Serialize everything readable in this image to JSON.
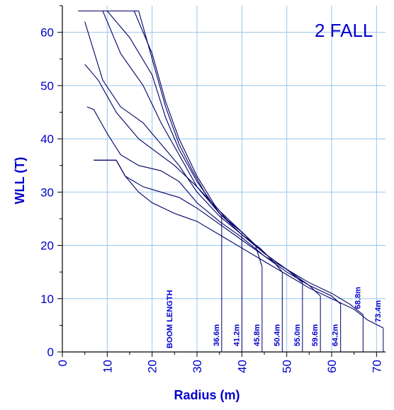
{
  "chart_data": {
    "type": "line",
    "title": "2 FALL",
    "xlabel": "Radius (m)",
    "ylabel": "WLL (T)",
    "xlim": [
      0,
      72
    ],
    "ylim": [
      0,
      65
    ],
    "x_ticks": [
      "0",
      "10",
      "20",
      "30",
      "40",
      "50",
      "60",
      "70"
    ],
    "y_ticks": [
      "0",
      "10",
      "20",
      "30",
      "40",
      "50",
      "60"
    ],
    "grid": true,
    "colors": {
      "line": "#000066",
      "text": "#0000cc",
      "grid": "#99c5e8",
      "frame": "#000000"
    },
    "annotation": "BOOM LENGTH",
    "series": [
      {
        "name": "36.6m",
        "end_x": 35.5,
        "points": [
          [
            3.5,
            64
          ],
          [
            17,
            64
          ],
          [
            20,
            55
          ],
          [
            23,
            46
          ],
          [
            26,
            39
          ],
          [
            29,
            34
          ],
          [
            32,
            29.5
          ],
          [
            35.5,
            25.5
          ]
        ]
      },
      {
        "name": "41.2m",
        "end_x": 40,
        "points": [
          [
            4,
            64
          ],
          [
            16,
            64
          ],
          [
            20,
            56
          ],
          [
            23,
            47
          ],
          [
            26,
            40
          ],
          [
            30,
            33
          ],
          [
            34,
            27.5
          ],
          [
            37,
            24.5
          ],
          [
            40,
            22.5
          ]
        ]
      },
      {
        "name": "45.8m",
        "end_x": 44.5,
        "points": [
          [
            5,
            64
          ],
          [
            10,
            64
          ],
          [
            15,
            59
          ],
          [
            20,
            52
          ],
          [
            23,
            44
          ],
          [
            26,
            38
          ],
          [
            30,
            32
          ],
          [
            35,
            26
          ],
          [
            40,
            22.5
          ],
          [
            43,
            20
          ],
          [
            44.5,
            16
          ]
        ]
      },
      {
        "name": "50.4m",
        "end_x": 49,
        "points": [
          [
            5.5,
            64
          ],
          [
            9,
            64
          ],
          [
            13,
            56
          ],
          [
            18,
            50
          ],
          [
            22,
            43
          ],
          [
            26,
            37
          ],
          [
            30,
            31
          ],
          [
            35,
            26
          ],
          [
            40,
            22
          ],
          [
            44,
            19.5
          ],
          [
            47,
            17
          ],
          [
            49,
            15
          ]
        ]
      },
      {
        "name": "55.0m",
        "end_x": 53.5,
        "points": [
          [
            5,
            62
          ],
          [
            9,
            51
          ],
          [
            13,
            46
          ],
          [
            18,
            43
          ],
          [
            22,
            39
          ],
          [
            26,
            35
          ],
          [
            30,
            30
          ],
          [
            35,
            25.5
          ],
          [
            40,
            22
          ],
          [
            45,
            18.5
          ],
          [
            50,
            15.5
          ],
          [
            53.5,
            13
          ]
        ]
      },
      {
        "name": "59.6m",
        "end_x": 57.5,
        "points": [
          [
            5,
            54
          ],
          [
            8,
            51
          ],
          [
            12,
            45
          ],
          [
            17,
            40
          ],
          [
            21,
            37.5
          ],
          [
            25,
            35
          ],
          [
            30,
            31
          ],
          [
            35,
            26.5
          ],
          [
            40,
            22.5
          ],
          [
            45,
            18.5
          ],
          [
            50,
            15.5
          ],
          [
            55,
            12.5
          ],
          [
            57.5,
            10.5
          ]
        ]
      },
      {
        "name": "64.2m",
        "end_x": 62,
        "points": [
          [
            5.5,
            46
          ],
          [
            7,
            45.5
          ],
          [
            10,
            41
          ],
          [
            13,
            37
          ],
          [
            17,
            35
          ],
          [
            22,
            34
          ],
          [
            26,
            32
          ],
          [
            30,
            28
          ],
          [
            35,
            24.5
          ],
          [
            40,
            21.5
          ],
          [
            45,
            18
          ],
          [
            50,
            15
          ],
          [
            55,
            12.5
          ],
          [
            60,
            10.5
          ],
          [
            62,
            9
          ]
        ]
      },
      {
        "name": "68.8m",
        "end_x": 67,
        "points": [
          [
            7,
            36
          ],
          [
            12,
            36
          ],
          [
            14,
            33
          ],
          [
            18,
            31
          ],
          [
            22,
            30
          ],
          [
            26,
            29
          ],
          [
            30,
            27
          ],
          [
            35,
            24
          ],
          [
            40,
            21
          ],
          [
            45,
            18
          ],
          [
            50,
            15.5
          ],
          [
            55,
            13
          ],
          [
            60,
            11
          ],
          [
            64,
            9
          ],
          [
            67,
            7
          ]
        ]
      },
      {
        "name": "73.4m",
        "end_x": 71.5,
        "points": [
          [
            7,
            36
          ],
          [
            12,
            36
          ],
          [
            14,
            33
          ],
          [
            17,
            30
          ],
          [
            20,
            28
          ],
          [
            25,
            26
          ],
          [
            30,
            24.5
          ],
          [
            35,
            22
          ],
          [
            40,
            19.5
          ],
          [
            45,
            17
          ],
          [
            50,
            14.5
          ],
          [
            55,
            12
          ],
          [
            60,
            10
          ],
          [
            65,
            8
          ],
          [
            68,
            6
          ],
          [
            71.5,
            4.5
          ]
        ]
      }
    ]
  }
}
